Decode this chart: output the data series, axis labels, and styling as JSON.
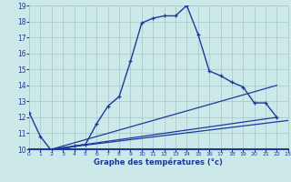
{
  "xlabel": "Graphe des températures (°c)",
  "background_color": "#cce8e8",
  "grid_color": "#aacccc",
  "line_color": "#1a3a9c",
  "axis_label_color": "#1a3a9c",
  "xmin": 0,
  "xmax": 23,
  "ymin": 10,
  "ymax": 19,
  "line1_x": [
    0,
    1,
    2,
    3,
    4,
    5,
    6,
    7,
    8,
    9,
    10,
    11,
    12,
    13,
    14,
    15,
    16,
    17,
    18,
    19,
    20,
    21,
    22
  ],
  "line1_y": [
    12.3,
    10.8,
    9.9,
    10.0,
    10.2,
    10.3,
    11.6,
    12.7,
    13.3,
    15.5,
    17.9,
    18.2,
    18.35,
    18.35,
    19.0,
    17.2,
    14.9,
    14.6,
    14.2,
    13.9,
    12.9,
    12.9,
    12.0
  ],
  "line2_x": [
    2,
    22
  ],
  "line2_y": [
    10.0,
    14.0
  ],
  "line3_x": [
    2,
    22
  ],
  "line3_y": [
    10.0,
    12.0
  ],
  "line4_x": [
    2,
    23
  ],
  "line4_y": [
    10.0,
    11.8
  ]
}
